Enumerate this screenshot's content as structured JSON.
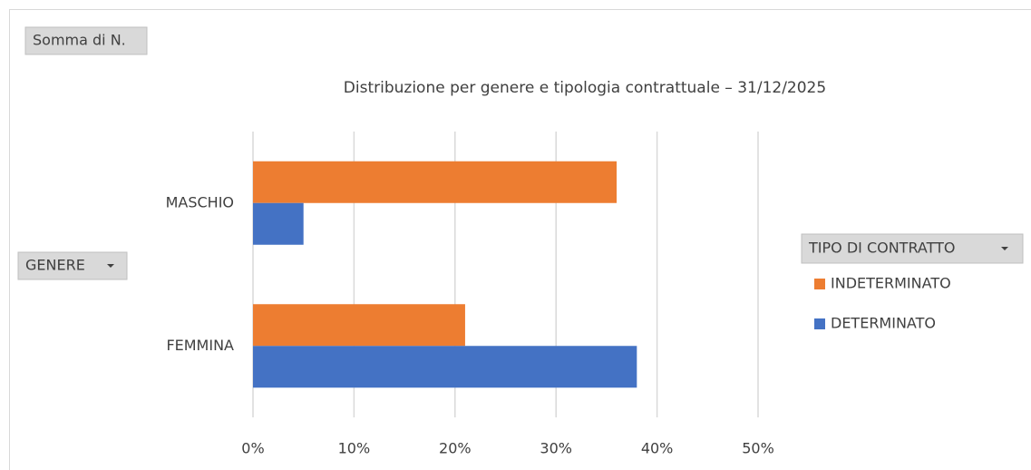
{
  "chart_data": {
    "type": "bar",
    "orientation": "horizontal",
    "title": "Distribuzione per genere e tipologia contrattuale – 31/12/2025",
    "value_field": "Somma di N.",
    "axis_field": "GENERE",
    "legend_title": "TIPO DI CONTRATTO",
    "legend_position": "right",
    "categories": [
      "MASCHIO",
      "FEMMINA"
    ],
    "series": [
      {
        "name": "INDETERMINATO",
        "color": "#ed7d31",
        "values": [
          36,
          21
        ]
      },
      {
        "name": "DETERMINATO",
        "color": "#4472c4",
        "values": [
          5,
          38
        ]
      }
    ],
    "xlim": [
      0,
      50
    ],
    "xticks": [
      {
        "value": 0,
        "label": "0%"
      },
      {
        "value": 10,
        "label": "10%"
      },
      {
        "value": 20,
        "label": "20%"
      },
      {
        "value": 30,
        "label": "30%"
      },
      {
        "value": 40,
        "label": "40%"
      },
      {
        "value": 50,
        "label": "50%"
      }
    ],
    "grid": true
  }
}
